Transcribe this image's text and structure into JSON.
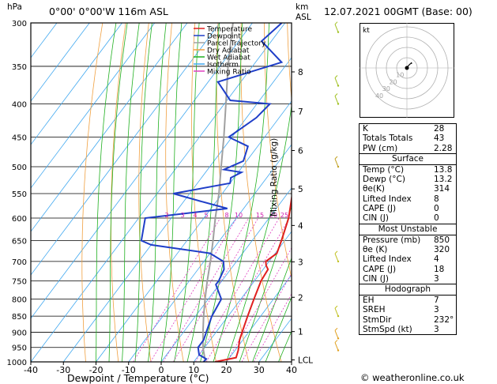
{
  "header": {
    "hpa": "hPa",
    "location": "0°00' 0°00'W 116m ASL",
    "km": "km",
    "asl": "ASL",
    "datetime": "12.07.2021 00GMT (Base: 00)"
  },
  "legend": [
    {
      "label": "Temperature",
      "color": "#e02020"
    },
    {
      "label": "Dewpoint",
      "color": "#1f3ec8"
    },
    {
      "label": "Parcel Trajectory",
      "color": "#a0a0a0"
    },
    {
      "label": "Dry Adiabat",
      "color": "#f0a040"
    },
    {
      "label": "Wet Adiabat",
      "color": "#20b020"
    },
    {
      "label": "Isotherm",
      "color": "#40a8f0"
    },
    {
      "label": "Mixing Ratio",
      "color": "#e040c0"
    }
  ],
  "chart_data": {
    "type": "line",
    "xlabel": "Dewpoint / Temperature (°C)",
    "ylabel": "Mixing Ratio (g/kg)",
    "x_ticks": [
      -40,
      -30,
      -20,
      -10,
      0,
      10,
      20,
      30,
      40
    ],
    "pressure_levels": [
      300,
      350,
      400,
      450,
      500,
      550,
      600,
      650,
      700,
      750,
      800,
      850,
      900,
      950,
      1000
    ],
    "km_ticks": [
      {
        "label": "8",
        "p": 357
      },
      {
        "label": "7",
        "p": 411
      },
      {
        "label": "6",
        "p": 472
      },
      {
        "label": "5",
        "p": 541
      },
      {
        "label": "4",
        "p": 616
      },
      {
        "label": "3",
        "p": 701
      },
      {
        "label": "2",
        "p": 795
      },
      {
        "label": "1",
        "p": 898
      },
      {
        "label": "LCL",
        "p": 993
      }
    ],
    "mixing_ratio_labels": [
      "2",
      "3",
      "4",
      "5",
      "8",
      "10",
      "15",
      "20",
      "25"
    ],
    "mixing_ratio_values": [
      2,
      3,
      4,
      5,
      8,
      10,
      15,
      20,
      25
    ],
    "temperature": [
      [
        1000,
        16.5
      ],
      [
        985,
        22
      ],
      [
        960,
        21
      ],
      [
        925,
        19
      ],
      [
        900,
        18
      ],
      [
        850,
        16
      ],
      [
        800,
        14
      ],
      [
        750,
        12
      ],
      [
        720,
        11.5
      ],
      [
        710,
        10
      ],
      [
        700,
        9
      ],
      [
        680,
        10.5
      ],
      [
        650,
        9
      ],
      [
        600,
        6
      ],
      [
        550,
        1.5
      ],
      [
        500,
        -3.5
      ],
      [
        475,
        -6.5
      ],
      [
        450,
        -9
      ],
      [
        425,
        -12
      ],
      [
        400,
        -15
      ],
      [
        375,
        -19.5
      ],
      [
        350,
        -24
      ],
      [
        325,
        -29
      ],
      [
        300,
        -34
      ]
    ],
    "dewpoint": [
      [
        1000,
        13
      ],
      [
        990,
        13.2
      ],
      [
        975,
        10
      ],
      [
        950,
        8
      ],
      [
        925,
        8
      ],
      [
        900,
        7
      ],
      [
        850,
        5
      ],
      [
        800,
        4
      ],
      [
        760,
        -1
      ],
      [
        750,
        -1
      ],
      [
        720,
        -2
      ],
      [
        700,
        -4
      ],
      [
        680,
        -10
      ],
      [
        660,
        -30
      ],
      [
        650,
        -34
      ],
      [
        600,
        -38
      ],
      [
        580,
        -15
      ],
      [
        565,
        -25
      ],
      [
        550,
        -35
      ],
      [
        530,
        -20
      ],
      [
        520,
        -21
      ],
      [
        510,
        -19
      ],
      [
        505,
        -25
      ],
      [
        490,
        -21
      ],
      [
        465,
        -23
      ],
      [
        450,
        -31
      ],
      [
        420,
        -27
      ],
      [
        400,
        -26
      ],
      [
        395,
        -39
      ],
      [
        370,
        -47
      ],
      [
        345,
        -32
      ],
      [
        320,
        -43
      ],
      [
        300,
        -41
      ]
    ],
    "parcel": [
      [
        993,
        13
      ],
      [
        950,
        9.5
      ],
      [
        900,
        6
      ],
      [
        850,
        2.5
      ],
      [
        800,
        -1
      ],
      [
        750,
        -4.5
      ],
      [
        700,
        -8
      ],
      [
        650,
        -12
      ],
      [
        600,
        -16.5
      ],
      [
        550,
        -21
      ],
      [
        500,
        -26.5
      ],
      [
        450,
        -32.5
      ],
      [
        400,
        -39.5
      ],
      [
        350,
        -47.5
      ],
      [
        300,
        -56
      ]
    ]
  },
  "panel": {
    "top": [
      {
        "label": "K",
        "value": "28"
      },
      {
        "label": "Totals Totals",
        "value": "43"
      },
      {
        "label": "PW (cm)",
        "value": "2.28"
      }
    ],
    "surface": {
      "title": "Surface",
      "rows": [
        {
          "label": "Temp (°C)",
          "value": "13.8"
        },
        {
          "label": "Dewp (°C)",
          "value": "13.2"
        },
        {
          "label": "θe(K)",
          "value": "314"
        },
        {
          "label": "Lifted Index",
          "value": "8"
        },
        {
          "label": "CAPE (J)",
          "value": "0"
        },
        {
          "label": "CIN (J)",
          "value": "0"
        }
      ]
    },
    "unstable": {
      "title": "Most Unstable",
      "rows": [
        {
          "label": "Pressure (mb)",
          "value": "850"
        },
        {
          "label": "θe (K)",
          "value": "320"
        },
        {
          "label": "Lifted Index",
          "value": "4"
        },
        {
          "label": "CAPE (J)",
          "value": "18"
        },
        {
          "label": "CIN (J)",
          "value": "3"
        }
      ]
    },
    "hodograph": {
      "title": "Hodograph",
      "rows": [
        {
          "label": "EH",
          "value": "7"
        },
        {
          "label": "SREH",
          "value": "3"
        },
        {
          "label": "StmDir",
          "value": "232°"
        },
        {
          "label": "StmSpd (kt)",
          "value": "3"
        }
      ]
    }
  },
  "hodo": {
    "label": "kt",
    "ring_labels": [
      "10",
      "20",
      "30",
      "40"
    ],
    "trace": [
      [
        0,
        0
      ],
      [
        2,
        3
      ],
      [
        4,
        5
      ],
      [
        6,
        6
      ],
      [
        5,
        7
      ]
    ]
  },
  "footer": {
    "copyright": "© weatheronline.co.uk"
  }
}
